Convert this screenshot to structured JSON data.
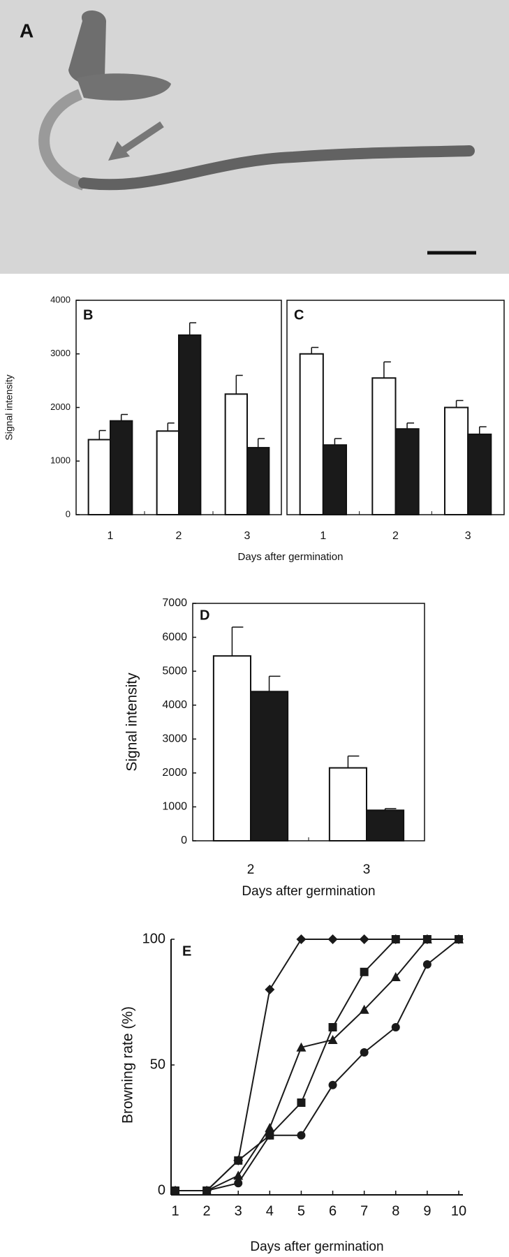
{
  "image": {
    "label": "A"
  },
  "chart_data": [
    {
      "type": "bar",
      "panel": "B",
      "ylabel": "Signal intensity",
      "xlabel": "Days after germination",
      "categories": [
        "1",
        "2",
        "3"
      ],
      "series": [
        {
          "color": "#ffffff",
          "values": [
            1400,
            1560,
            2250
          ],
          "errors": [
            170,
            150,
            350
          ]
        },
        {
          "color": "#1a1a1a",
          "values": [
            1750,
            3350,
            1250
          ],
          "errors": [
            120,
            230,
            170
          ]
        }
      ],
      "ylim": [
        0,
        4000
      ],
      "yticks": [
        0,
        1000,
        2000,
        3000,
        4000
      ],
      "frame": true
    },
    {
      "type": "bar",
      "panel": "C",
      "categories": [
        "1",
        "2",
        "3"
      ],
      "series": [
        {
          "color": "#ffffff",
          "values": [
            3000,
            2550,
            2000
          ],
          "errors": [
            120,
            300,
            130
          ]
        },
        {
          "color": "#1a1a1a",
          "values": [
            1300,
            1600,
            1500
          ],
          "errors": [
            120,
            110,
            140
          ]
        }
      ],
      "ylim": [
        0,
        4000
      ],
      "frame": true
    },
    {
      "type": "bar",
      "panel": "D",
      "ylabel": "Signal intensity",
      "xlabel": "Days after germination",
      "categories": [
        "2",
        "3"
      ],
      "series": [
        {
          "color": "#ffffff",
          "values": [
            5450,
            2150
          ],
          "errors": [
            850,
            350
          ]
        },
        {
          "color": "#1a1a1a",
          "values": [
            4400,
            900
          ],
          "errors": [
            450,
            50
          ]
        }
      ],
      "ylim": [
        0,
        7000
      ],
      "yticks": [
        0,
        1000,
        2000,
        3000,
        4000,
        5000,
        6000,
        7000
      ],
      "frame": true
    },
    {
      "type": "line",
      "panel": "E",
      "ylabel": "Browning rate (%)",
      "xlabel": "Days after germination",
      "x": [
        1,
        2,
        3,
        4,
        5,
        6,
        7,
        8,
        9,
        10
      ],
      "series": [
        {
          "color": "#1a1a1a",
          "marker": "diamond",
          "values": [
            0,
            0,
            12,
            80,
            100,
            100,
            100,
            100,
            100,
            100
          ]
        },
        {
          "color": "#1a1a1a",
          "marker": "square",
          "values": [
            0,
            0,
            12,
            22,
            35,
            65,
            87,
            100,
            100,
            100
          ]
        },
        {
          "color": "#1a1a1a",
          "marker": "triangle",
          "values": [
            0,
            0,
            6,
            25,
            57,
            60,
            72,
            85,
            100,
            100
          ]
        },
        {
          "color": "#1a1a1a",
          "marker": "circle",
          "values": [
            0,
            0,
            3,
            22,
            22,
            42,
            55,
            65,
            90,
            100
          ]
        }
      ],
      "xlim": [
        1,
        10
      ],
      "xticks": [
        1,
        2,
        3,
        4,
        5,
        6,
        7,
        8,
        9,
        10
      ],
      "ylim": [
        0,
        100
      ],
      "yticks": [
        0,
        50,
        100
      ],
      "frame": false
    }
  ]
}
